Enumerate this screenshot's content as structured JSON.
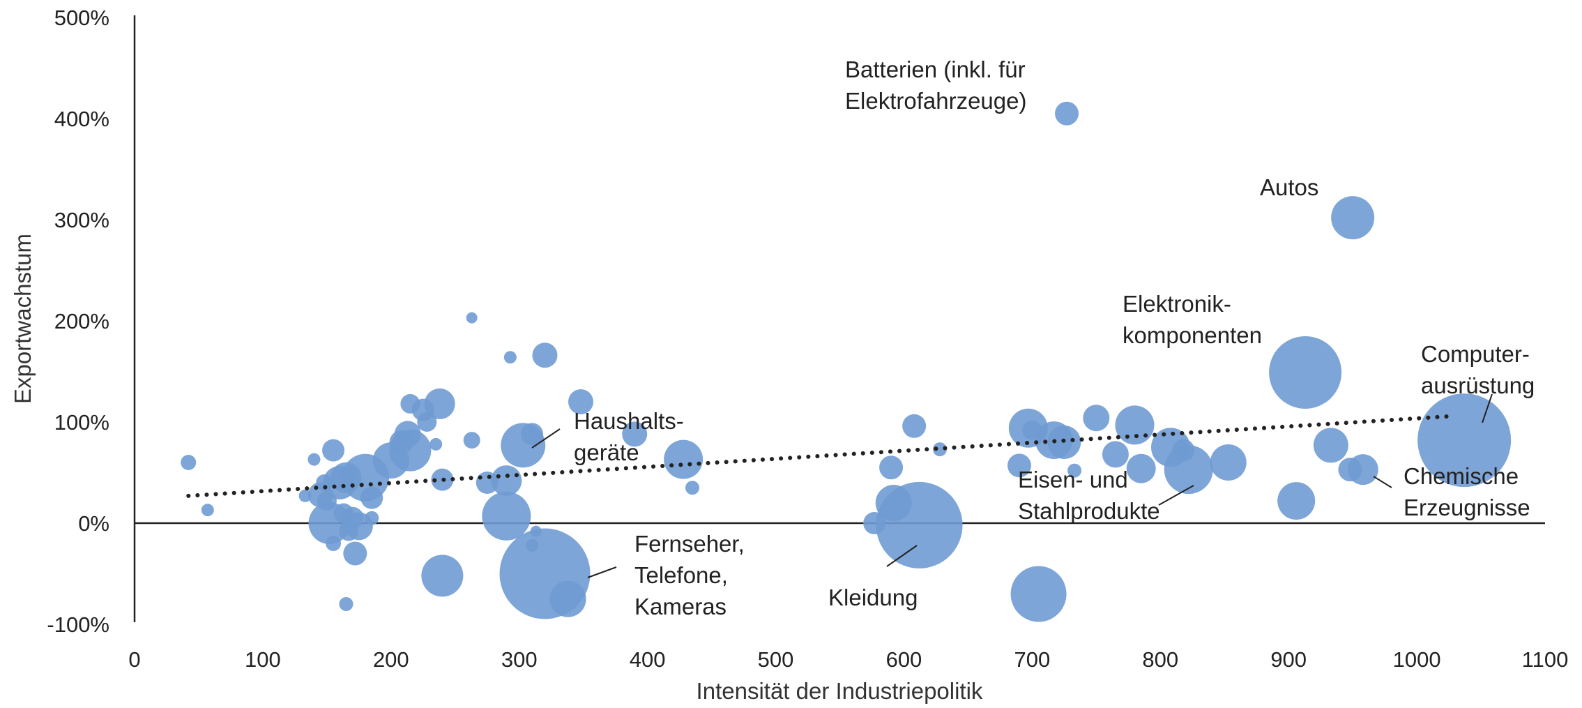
{
  "chart_data": {
    "type": "scatter",
    "variant": "bubble",
    "title": "",
    "xlabel": "Intensität der Industriepolitik",
    "ylabel": "Exportwachstum",
    "xlim": [
      0,
      1100
    ],
    "ylim": [
      -100,
      500
    ],
    "x_ticks": [
      0,
      100,
      200,
      300,
      400,
      500,
      600,
      700,
      800,
      900,
      1000,
      1100
    ],
    "y_ticks": [
      -100,
      0,
      100,
      200,
      300,
      400,
      500
    ],
    "y_tick_labels": [
      "-100%",
      "0%",
      "100%",
      "200%",
      "300%",
      "400%",
      "500%"
    ],
    "grid": false,
    "legend": "none",
    "bubble_color": "#6f9bd3",
    "trendline": {
      "style": "dotted",
      "color": "#222222",
      "x": [
        42,
        1030
      ],
      "y": [
        27,
        106
      ]
    },
    "points": [
      {
        "x": 42,
        "y": 60,
        "size": 11
      },
      {
        "x": 57,
        "y": 13,
        "size": 9
      },
      {
        "x": 133,
        "y": 27,
        "size": 9
      },
      {
        "x": 140,
        "y": 63,
        "size": 9
      },
      {
        "x": 145,
        "y": 28,
        "size": 18
      },
      {
        "x": 148,
        "y": 40,
        "size": 12
      },
      {
        "x": 150,
        "y": 22,
        "size": 14
      },
      {
        "x": 152,
        "y": 0,
        "size": 30
      },
      {
        "x": 155,
        "y": 72,
        "size": 16
      },
      {
        "x": 155,
        "y": -20,
        "size": 11
      },
      {
        "x": 160,
        "y": 40,
        "size": 24
      },
      {
        "x": 163,
        "y": 10,
        "size": 14
      },
      {
        "x": 165,
        "y": 45,
        "size": 22
      },
      {
        "x": 167,
        "y": -8,
        "size": 14
      },
      {
        "x": 170,
        "y": 5,
        "size": 16
      },
      {
        "x": 172,
        "y": -30,
        "size": 17
      },
      {
        "x": 175,
        "y": -3,
        "size": 20
      },
      {
        "x": 180,
        "y": 45,
        "size": 34
      },
      {
        "x": 185,
        "y": 25,
        "size": 16
      },
      {
        "x": 185,
        "y": 5,
        "size": 10
      },
      {
        "x": 165,
        "y": -80,
        "size": 10
      },
      {
        "x": 200,
        "y": 62,
        "size": 26
      },
      {
        "x": 208,
        "y": 80,
        "size": 17
      },
      {
        "x": 213,
        "y": 88,
        "size": 19
      },
      {
        "x": 215,
        "y": 118,
        "size": 14
      },
      {
        "x": 215,
        "y": 72,
        "size": 30
      },
      {
        "x": 225,
        "y": 112,
        "size": 16
      },
      {
        "x": 228,
        "y": 100,
        "size": 14
      },
      {
        "x": 235,
        "y": 78,
        "size": 9
      },
      {
        "x": 238,
        "y": 118,
        "size": 22
      },
      {
        "x": 240,
        "y": 43,
        "size": 16
      },
      {
        "x": 240,
        "y": -52,
        "size": 30
      },
      {
        "x": 263,
        "y": 203,
        "size": 8
      },
      {
        "x": 263,
        "y": 82,
        "size": 12
      },
      {
        "x": 275,
        "y": 40,
        "size": 16
      },
      {
        "x": 290,
        "y": 42,
        "size": 22
      },
      {
        "x": 290,
        "y": 7,
        "size": 35
      },
      {
        "x": 293,
        "y": 164,
        "size": 9
      },
      {
        "x": 303,
        "y": 77,
        "size": 32
      },
      {
        "x": 310,
        "y": 88,
        "size": 16
      },
      {
        "x": 310,
        "y": -22,
        "size": 9
      },
      {
        "x": 313,
        "y": -8,
        "size": 8
      },
      {
        "x": 320,
        "y": 166,
        "size": 18
      },
      {
        "x": 320,
        "y": -50,
        "size": 65
      },
      {
        "x": 338,
        "y": -75,
        "size": 26
      },
      {
        "x": 348,
        "y": 120,
        "size": 18
      },
      {
        "x": 390,
        "y": 88,
        "size": 18
      },
      {
        "x": 428,
        "y": 63,
        "size": 28
      },
      {
        "x": 435,
        "y": 35,
        "size": 10
      },
      {
        "x": 577,
        "y": 0,
        "size": 16
      },
      {
        "x": 590,
        "y": 55,
        "size": 17
      },
      {
        "x": 592,
        "y": 20,
        "size": 26
      },
      {
        "x": 608,
        "y": 96,
        "size": 17
      },
      {
        "x": 612,
        "y": -2,
        "size": 62
      },
      {
        "x": 628,
        "y": 73,
        "size": 10
      },
      {
        "x": 690,
        "y": 57,
        "size": 17
      },
      {
        "x": 697,
        "y": 94,
        "size": 28
      },
      {
        "x": 700,
        "y": 92,
        "size": 14
      },
      {
        "x": 705,
        "y": -70,
        "size": 40
      },
      {
        "x": 717,
        "y": 82,
        "size": 27
      },
      {
        "x": 725,
        "y": 80,
        "size": 24
      },
      {
        "x": 727,
        "y": 405,
        "size": 17
      },
      {
        "x": 733,
        "y": 52,
        "size": 10
      },
      {
        "x": 750,
        "y": 104,
        "size": 19
      },
      {
        "x": 765,
        "y": 68,
        "size": 19
      },
      {
        "x": 780,
        "y": 97,
        "size": 28
      },
      {
        "x": 785,
        "y": 54,
        "size": 21
      },
      {
        "x": 808,
        "y": 75,
        "size": 28
      },
      {
        "x": 818,
        "y": 72,
        "size": 16
      },
      {
        "x": 822,
        "y": 53,
        "size": 35
      },
      {
        "x": 853,
        "y": 60,
        "size": 26
      },
      {
        "x": 906,
        "y": 22,
        "size": 27
      },
      {
        "x": 913,
        "y": 149,
        "size": 52
      },
      {
        "x": 933,
        "y": 77,
        "size": 25
      },
      {
        "x": 948,
        "y": 53,
        "size": 17
      },
      {
        "x": 950,
        "y": 302,
        "size": 31
      },
      {
        "x": 958,
        "y": 53,
        "size": 22
      },
      {
        "x": 1037,
        "y": 82,
        "size": 67
      }
    ],
    "annotations": [
      {
        "lines": [
          "Batterien (inkl. für",
          "Elektrofahrzeuge)"
        ]
      },
      {
        "lines": [
          "Autos"
        ]
      },
      {
        "lines": [
          "Elektronik-",
          "komponenten"
        ]
      },
      {
        "lines": [
          "Computer-",
          "ausrüstung"
        ]
      },
      {
        "lines": [
          "Haushalts-",
          "geräte"
        ]
      },
      {
        "lines": [
          "Fernseher,",
          "Telefone,",
          "Kameras"
        ]
      },
      {
        "lines": [
          "Kleidung"
        ]
      },
      {
        "lines": [
          "Eisen- und",
          "Stahlprodukte"
        ]
      },
      {
        "lines": [
          "Chemische",
          "Erzeugnisse"
        ]
      }
    ]
  }
}
